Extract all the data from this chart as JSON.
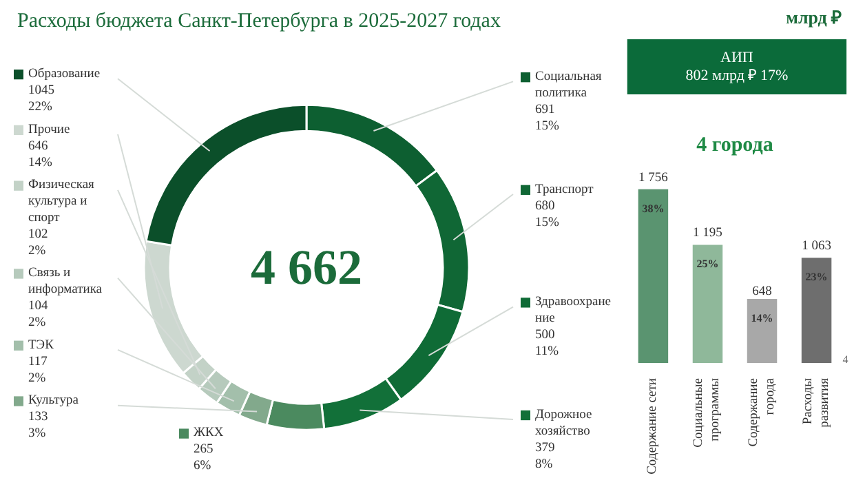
{
  "chart_data": [
    {
      "type": "donut",
      "title": "Расходы бюджета Санкт-Петербурга в 2025-2027 годах",
      "categories": [
        "Социальная политика",
        "Транспорт",
        "Здравоохранение",
        "Дорожное хозяйство",
        "ЖКХ",
        "Культура",
        "ТЭК",
        "Связь и информатика",
        "Физическая культура и спорт",
        "Прочие",
        "Образование"
      ],
      "values": [
        691,
        680,
        500,
        379,
        265,
        133,
        117,
        104,
        102,
        646,
        1045
      ],
      "value_labels": [
        "691\n15%",
        "680\n15%",
        "500\n11%",
        "379\n8%",
        "265\n6%",
        "133\n3%",
        "117\n2%",
        "104\n2%",
        "102\n2%",
        "646\n14%",
        "1045\n22%"
      ],
      "colors": [
        "#0d5f31",
        "#106735",
        "#0f6b36",
        "#127039",
        "#4b8a5f",
        "#82a98c",
        "#a3bfab",
        "#b6cabc",
        "#c3d2c7",
        "#cdd8d0",
        "#0b4f2a"
      ],
      "legend": "left",
      "annotations": [
        "4 662"
      ]
    },
    {
      "type": "other",
      "color": "#0b6b3a",
      "annotations": [
        "млрд ₽",
        "АИП",
        "802 млрд ₽ 17%"
      ]
    },
    {
      "type": "bar",
      "title": "4 города",
      "categories": [
        "Содержание сети",
        "Социальные\nпрограммы",
        "Содержание\nгорода",
        "Расходы\nразвития"
      ],
      "values": [
        1756,
        1195,
        648,
        1063
      ],
      "value_labels": [
        "1 756",
        "1 195",
        "648",
        "1 063"
      ],
      "colors": [
        "#5a9470",
        "#8fb89a",
        "#a8a8a8",
        "#6e6e6e"
      ],
      "annotations": [
        "38%",
        "25%",
        "14%",
        "23%",
        "4"
      ]
    }
  ]
}
